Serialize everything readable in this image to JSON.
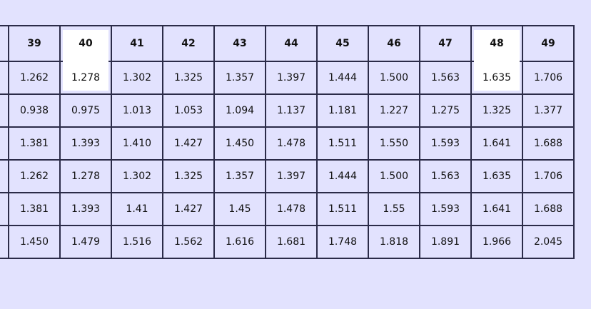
{
  "columns": [
    "",
    "39",
    "40",
    "41",
    "42",
    "43",
    "44",
    "45",
    "46",
    "47",
    "48",
    "49"
  ],
  "highlighted_columns": [
    "40",
    "48"
  ],
  "rows": [
    [
      "",
      "1.262",
      "1.278",
      "1.302",
      "1.325",
      "1.357",
      "1.397",
      "1.444",
      "1.500",
      "1.563",
      "1.635",
      "1.706"
    ],
    [
      "",
      "0.938",
      "0.975",
      "1.013",
      "1.053",
      "1.094",
      "1.137",
      "1.181",
      "1.227",
      "1.275",
      "1.325",
      "1.377"
    ],
    [
      "",
      "1.381",
      "1.393",
      "1.410",
      "1.427",
      "1.450",
      "1.478",
      "1.511",
      "1.550",
      "1.593",
      "1.641",
      "1.688"
    ],
    [
      "",
      "1.262",
      "1.278",
      "1.302",
      "1.325",
      "1.357",
      "1.397",
      "1.444",
      "1.500",
      "1.563",
      "1.635",
      "1.706"
    ],
    [
      "",
      "1.381",
      "1.393",
      "1.41",
      "1.427",
      "1.45",
      "1.478",
      "1.511",
      "1.55",
      "1.593",
      "1.641",
      "1.688"
    ],
    [
      "",
      "1.450",
      "1.479",
      "1.516",
      "1.562",
      "1.616",
      "1.681",
      "1.748",
      "1.818",
      "1.891",
      "1.966",
      "2.045"
    ]
  ],
  "colors": {
    "background": "#e2e2fe",
    "border": "#2b2b48",
    "highlight": "#ffffff"
  }
}
